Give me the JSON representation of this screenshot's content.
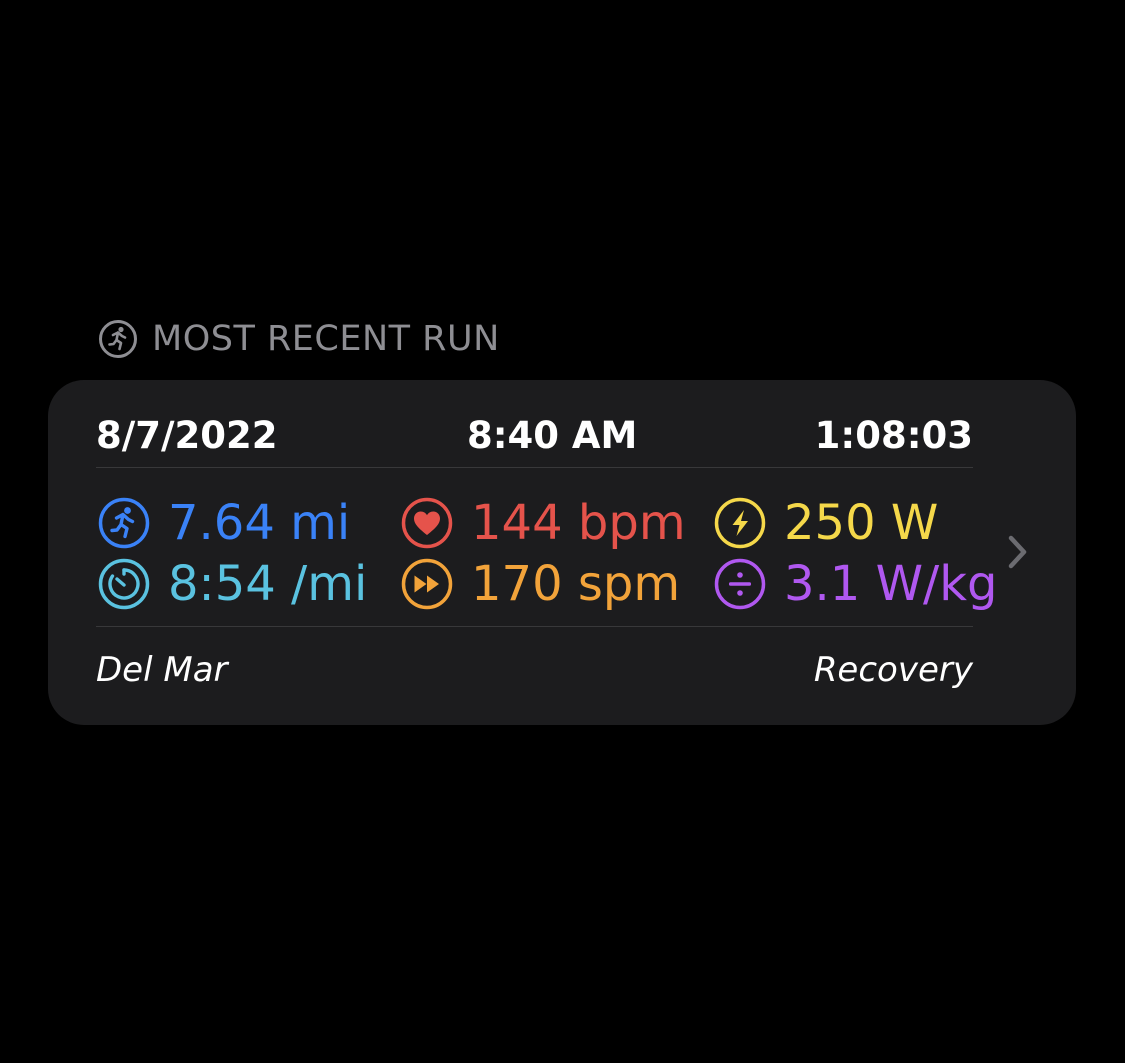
{
  "section": {
    "title": "MOST RECENT RUN",
    "icon": "runner-circle-icon"
  },
  "run": {
    "date": "8/7/2022",
    "time": "8:40 AM",
    "duration": "1:08:03",
    "metrics": [
      {
        "icon": "runner-icon",
        "value": "7.64 mi",
        "color": "#3a82f7"
      },
      {
        "icon": "stopwatch-icon",
        "value": "8:54 /mi",
        "color": "#5ac2e0"
      },
      {
        "icon": "heart-icon",
        "value": "144 bpm",
        "color": "#e5534b"
      },
      {
        "icon": "fast-forward-icon",
        "value": "170 spm",
        "color": "#f2a33a"
      },
      {
        "icon": "bolt-icon",
        "value": "250 W",
        "color": "#f5d84a"
      },
      {
        "icon": "divide-icon",
        "value": "3.1 W/kg",
        "color": "#b058f0"
      }
    ],
    "location": "Del Mar",
    "workout_type": "Recovery"
  },
  "colors": {
    "card_background": "#1c1c1e",
    "header_text": "#8e8e93",
    "chevron": "#6b6b70"
  }
}
